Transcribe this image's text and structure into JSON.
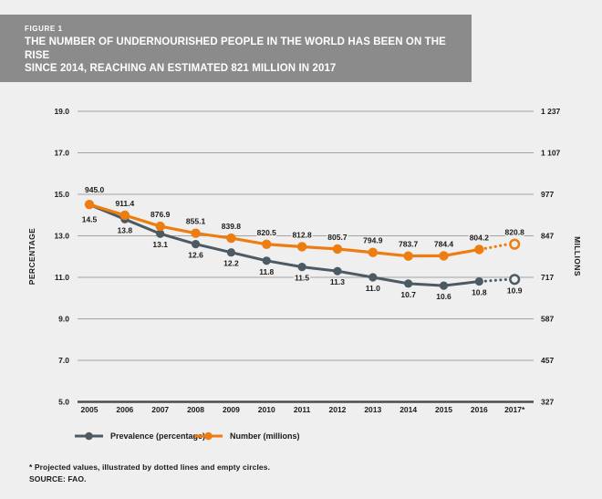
{
  "page": {
    "background": "#EFEFEF"
  },
  "header": {
    "kicker": "FIGURE 1",
    "title_line1": "THE NUMBER OF UNDERNOURISHED PEOPLE IN THE WORLD HAS BEEN ON THE RISE",
    "title_line2": "SINCE 2014, REACHING AN ESTIMATED 821 MILLION IN 2017",
    "background": "#8B8B8B",
    "text_color": "#FFFFFF"
  },
  "chart_data": {
    "type": "line",
    "title": "The number of undernourished people in the world has been on the rise since 2014, reaching an estimated 821 million in 2017",
    "categories": [
      "2005",
      "2006",
      "2007",
      "2008",
      "2009",
      "2010",
      "2011",
      "2012",
      "2013",
      "2014",
      "2015",
      "2016",
      "2017*"
    ],
    "series": [
      {
        "name": "Prevalence (percentage)",
        "axis": "left",
        "color": "#4C5A64",
        "values": [
          14.5,
          13.8,
          13.1,
          12.6,
          12.2,
          11.8,
          11.5,
          11.3,
          11.0,
          10.7,
          10.6,
          10.8,
          10.9
        ],
        "projected_last_point": true
      },
      {
        "name": "Number (millions)",
        "axis": "right",
        "color": "#ED7D11",
        "values": [
          945.0,
          911.4,
          876.9,
          855.1,
          839.8,
          820.5,
          812.8,
          805.7,
          794.9,
          783.7,
          784.4,
          804.2,
          820.8
        ],
        "projected_last_point": true
      }
    ],
    "left_axis": {
      "label": "PERCENTAGE",
      "ticks": [
        19.0,
        17.0,
        15.0,
        13.0,
        11.0,
        9.0,
        7.0,
        5.0
      ],
      "range": [
        5,
        19
      ]
    },
    "right_axis": {
      "label": "MILLIONS",
      "ticks": [
        "1 237",
        "1 107",
        "977",
        "847",
        "717",
        "587",
        "457",
        "327"
      ],
      "range": [
        327,
        1237
      ]
    },
    "grid": true,
    "legend_position": "bottom"
  },
  "footnotes": {
    "line1": "* Projected values, illustrated by dotted lines and empty circles.",
    "line2": "SOURCE: FAO."
  }
}
